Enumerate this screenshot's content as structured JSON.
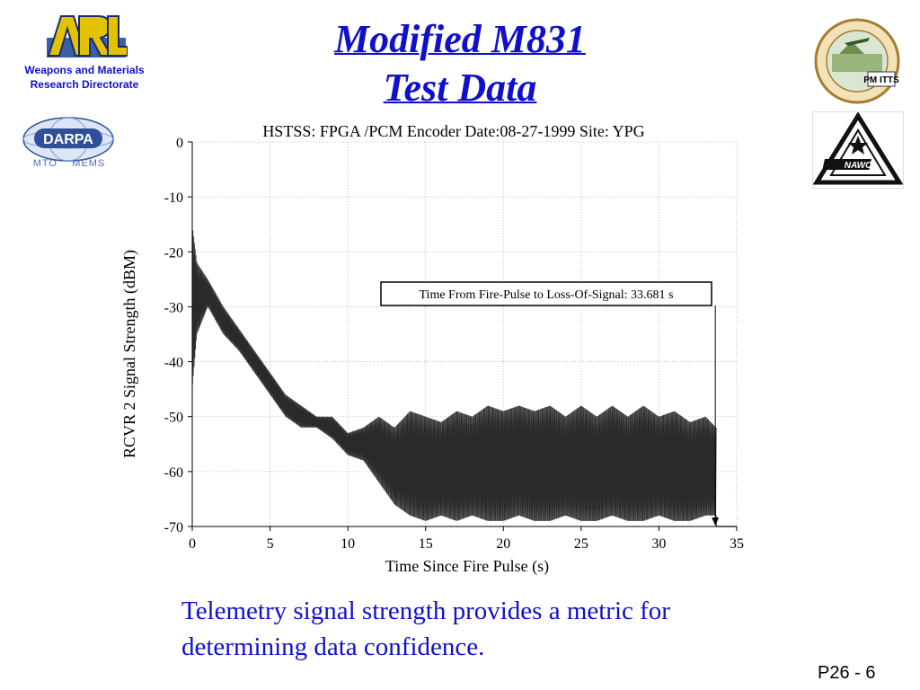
{
  "slide": {
    "title_line1": "Modified M831",
    "title_line2": "Test Data",
    "body_text_line1": "Telemetry signal strength provides a metric for",
    "body_text_line2": "determining data confidence.",
    "page_number": "P26 - 6"
  },
  "logos": {
    "arl": {
      "text": "ARL",
      "caption_line1": "Weapons and Materials",
      "caption_line2": "Research Directorate"
    },
    "darpa": {
      "text": "DARPA",
      "sub_left": "MTO",
      "sub_right": "MEMS"
    },
    "seal": {
      "text": "PM ITTS"
    },
    "nawc": {
      "text": "NAWC"
    }
  },
  "colors": {
    "title": "#1010cc",
    "body_text": "#1010cc",
    "signal": "#2a2a2a",
    "grid": "#b0b0b0"
  },
  "chart_data": {
    "type": "line",
    "title": "HSTSS: FPGA /PCM Encoder   Date:08-27-1999    Site: YPG",
    "xlabel": "Time Since Fire Pulse (s)",
    "ylabel": "RCVR 2 Signal Strength  (dBM)",
    "xlim": [
      0,
      35
    ],
    "ylim": [
      -70,
      0
    ],
    "x_ticks": [
      0,
      5,
      10,
      15,
      20,
      25,
      30,
      35
    ],
    "y_ticks": [
      0,
      -10,
      -20,
      -30,
      -40,
      -50,
      -60,
      -70
    ],
    "grid": true,
    "annotation": {
      "text": "Time From Fire-Pulse to Loss-Of-Signal: 33.681 s",
      "x": 33.681
    },
    "series": [
      {
        "envelope_upper": [
          [
            0,
            -15
          ],
          [
            0.3,
            -22
          ],
          [
            1,
            -25
          ],
          [
            2,
            -30
          ],
          [
            3,
            -34
          ],
          [
            4,
            -38
          ],
          [
            5,
            -42
          ],
          [
            6,
            -46
          ],
          [
            7,
            -48
          ],
          [
            8,
            -50
          ],
          [
            9,
            -50
          ],
          [
            10,
            -53
          ],
          [
            11,
            -52
          ],
          [
            12,
            -50
          ],
          [
            13,
            -52
          ],
          [
            14,
            -49
          ],
          [
            15,
            -50
          ],
          [
            16,
            -51
          ],
          [
            17,
            -49
          ],
          [
            18,
            -50
          ],
          [
            19,
            -48
          ],
          [
            20,
            -49
          ],
          [
            21,
            -48
          ],
          [
            22,
            -49
          ],
          [
            23,
            -48
          ],
          [
            24,
            -50
          ],
          [
            25,
            -48
          ],
          [
            26,
            -50
          ],
          [
            27,
            -48
          ],
          [
            28,
            -50
          ],
          [
            29,
            -48
          ],
          [
            30,
            -50
          ],
          [
            31,
            -49
          ],
          [
            32,
            -51
          ],
          [
            33,
            -50
          ],
          [
            33.681,
            -52
          ]
        ],
        "envelope_lower": [
          [
            0,
            -45
          ],
          [
            0.3,
            -35
          ],
          [
            1,
            -30
          ],
          [
            2,
            -35
          ],
          [
            3,
            -38
          ],
          [
            4,
            -42
          ],
          [
            5,
            -46
          ],
          [
            6,
            -50
          ],
          [
            7,
            -52
          ],
          [
            8,
            -52
          ],
          [
            9,
            -54
          ],
          [
            10,
            -57
          ],
          [
            11,
            -58
          ],
          [
            12,
            -62
          ],
          [
            13,
            -66
          ],
          [
            14,
            -68
          ],
          [
            15,
            -69
          ],
          [
            16,
            -68
          ],
          [
            17,
            -69
          ],
          [
            18,
            -68
          ],
          [
            19,
            -69
          ],
          [
            20,
            -69
          ],
          [
            21,
            -68
          ],
          [
            22,
            -69
          ],
          [
            23,
            -69
          ],
          [
            24,
            -68
          ],
          [
            25,
            -69
          ],
          [
            26,
            -69
          ],
          [
            27,
            -68
          ],
          [
            28,
            -69
          ],
          [
            29,
            -69
          ],
          [
            30,
            -68
          ],
          [
            31,
            -69
          ],
          [
            32,
            -69
          ],
          [
            33,
            -68
          ],
          [
            33.681,
            -68
          ]
        ]
      }
    ],
    "post_loss_level": -70
  }
}
